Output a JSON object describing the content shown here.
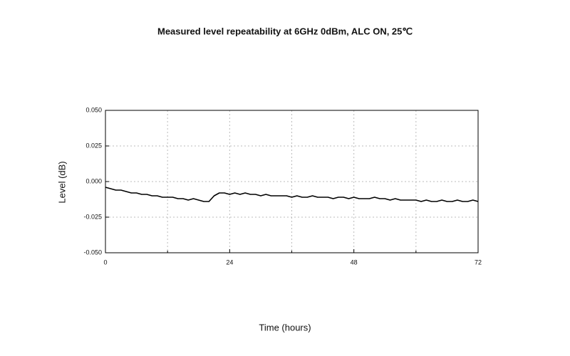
{
  "chart_data": {
    "type": "line",
    "title": "Measured level repeatability at 6GHz 0dBm, ALC ON, 25℃",
    "x_label": "Time (hours)",
    "y_label": "Level (dB)",
    "x": [
      0,
      1,
      2,
      3,
      4,
      5,
      6,
      7,
      8,
      9,
      10,
      11,
      12,
      13,
      14,
      15,
      16,
      17,
      18,
      19,
      20,
      21,
      22,
      23,
      24,
      25,
      26,
      27,
      28,
      29,
      30,
      31,
      32,
      33,
      34,
      35,
      36,
      37,
      38,
      39,
      40,
      41,
      42,
      43,
      44,
      45,
      46,
      47,
      48,
      49,
      50,
      51,
      52,
      53,
      54,
      55,
      56,
      57,
      58,
      59,
      60,
      61,
      62,
      63,
      64,
      65,
      66,
      67,
      68,
      69,
      70,
      71,
      72
    ],
    "series": [
      {
        "name": "Level",
        "color": "#000000",
        "values": [
          -0.004,
          -0.005,
          -0.006,
          -0.006,
          -0.007,
          -0.008,
          -0.008,
          -0.009,
          -0.009,
          -0.01,
          -0.01,
          -0.011,
          -0.011,
          -0.011,
          -0.012,
          -0.012,
          -0.013,
          -0.012,
          -0.013,
          -0.014,
          -0.014,
          -0.01,
          -0.008,
          -0.008,
          -0.009,
          -0.008,
          -0.009,
          -0.008,
          -0.009,
          -0.009,
          -0.01,
          -0.009,
          -0.01,
          -0.01,
          -0.01,
          -0.01,
          -0.011,
          -0.01,
          -0.011,
          -0.011,
          -0.01,
          -0.011,
          -0.011,
          -0.011,
          -0.012,
          -0.011,
          -0.011,
          -0.012,
          -0.011,
          -0.012,
          -0.012,
          -0.012,
          -0.011,
          -0.012,
          -0.012,
          -0.013,
          -0.012,
          -0.013,
          -0.013,
          -0.013,
          -0.013,
          -0.014,
          -0.013,
          -0.014,
          -0.014,
          -0.013,
          -0.014,
          -0.014,
          -0.013,
          -0.014,
          -0.014,
          -0.013,
          -0.014
        ]
      }
    ],
    "xlim": [
      0,
      72
    ],
    "xticks": [
      0,
      24,
      48,
      72
    ],
    "x_minor_ticks": [
      12,
      36,
      60
    ],
    "ylim": [
      -0.05,
      0.05
    ],
    "yticks": [
      {
        "value": -0.05,
        "label": "-0.050"
      },
      {
        "value": -0.025,
        "label": "-0.025"
      },
      {
        "value": 0,
        "label": "0.000"
      },
      {
        "value": 0.025,
        "label": "0.025"
      },
      {
        "value": 0.05,
        "label": "0.050"
      }
    ],
    "grid": true
  }
}
